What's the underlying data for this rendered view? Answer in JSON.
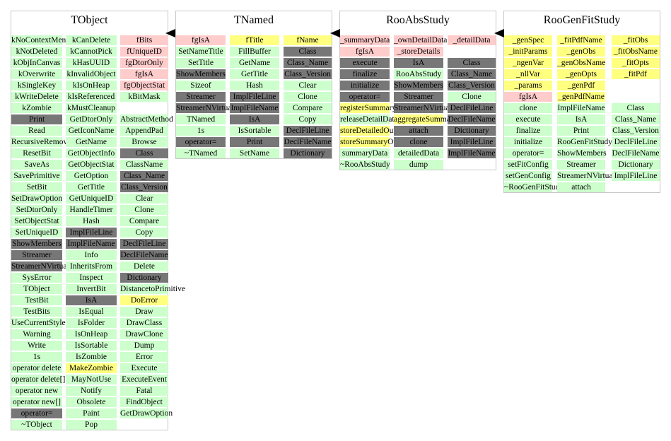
{
  "colors": {
    "green": "#ccffcc",
    "red": "#ffcccc",
    "yellow": "#ffff80",
    "gray": "#777777",
    "border": "#c8c8c8",
    "arrow": "#000000"
  },
  "classes": [
    {
      "name": "TObject",
      "columns": [
        [
          {
            "t": "kNoContextMenu",
            "c": "green"
          },
          {
            "t": "kNotDeleted",
            "c": "green"
          },
          {
            "t": "kObjInCanvas",
            "c": "green"
          },
          {
            "t": "kOverwrite",
            "c": "green"
          },
          {
            "t": "kSingleKey",
            "c": "green"
          },
          {
            "t": "kWriteDelete",
            "c": "green"
          },
          {
            "t": "kZombie",
            "c": "green"
          },
          {
            "t": "Print",
            "c": "gray"
          },
          {
            "t": "Read",
            "c": "green"
          },
          {
            "t": "RecursiveRemove",
            "c": "green"
          },
          {
            "t": "ResetBit",
            "c": "green"
          },
          {
            "t": "SaveAs",
            "c": "green"
          },
          {
            "t": "SavePrimitive",
            "c": "green"
          },
          {
            "t": "SetBit",
            "c": "green"
          },
          {
            "t": "SetDrawOption",
            "c": "green"
          },
          {
            "t": "SetDtorOnly",
            "c": "green"
          },
          {
            "t": "SetObjectStat",
            "c": "green"
          },
          {
            "t": "SetUniqueID",
            "c": "green"
          },
          {
            "t": "ShowMembers",
            "c": "gray"
          },
          {
            "t": "Streamer",
            "c": "gray"
          },
          {
            "t": "StreamerNVirtual",
            "c": "gray"
          },
          {
            "t": "SysError",
            "c": "green"
          },
          {
            "t": "TObject",
            "c": "green"
          },
          {
            "t": "TestBit",
            "c": "green"
          },
          {
            "t": "TestBits",
            "c": "green"
          },
          {
            "t": "UseCurrentStyle",
            "c": "green"
          },
          {
            "t": "Warning",
            "c": "green"
          },
          {
            "t": "Write",
            "c": "green"
          },
          {
            "t": "1s",
            "c": "green"
          },
          {
            "t": "operator delete",
            "c": "green"
          },
          {
            "t": "operator delete[]",
            "c": "green"
          },
          {
            "t": "operator new",
            "c": "green"
          },
          {
            "t": "operator new[]",
            "c": "green"
          },
          {
            "t": "operator=",
            "c": "gray"
          },
          {
            "t": "~TObject",
            "c": "green"
          }
        ],
        [
          {
            "t": "kCanDelete",
            "c": "green"
          },
          {
            "t": "kCannotPick",
            "c": "green"
          },
          {
            "t": "kHasUUID",
            "c": "green"
          },
          {
            "t": "kInvalidObject",
            "c": "green"
          },
          {
            "t": "kIsOnHeap",
            "c": "green"
          },
          {
            "t": "kIsReferenced",
            "c": "green"
          },
          {
            "t": "kMustCleanup",
            "c": "green"
          },
          {
            "t": "GetDtorOnly",
            "c": "green"
          },
          {
            "t": "GetIconName",
            "c": "green"
          },
          {
            "t": "GetName",
            "c": "green"
          },
          {
            "t": "GetObjectInfo",
            "c": "green"
          },
          {
            "t": "GetObjectStat",
            "c": "green"
          },
          {
            "t": "GetOption",
            "c": "green"
          },
          {
            "t": "GetTitle",
            "c": "green"
          },
          {
            "t": "GetUniqueID",
            "c": "green"
          },
          {
            "t": "HandleTimer",
            "c": "green"
          },
          {
            "t": "Hash",
            "c": "green"
          },
          {
            "t": "ImplFileLine",
            "c": "gray"
          },
          {
            "t": "ImplFileName",
            "c": "gray"
          },
          {
            "t": "Info",
            "c": "green"
          },
          {
            "t": "InheritsFrom",
            "c": "green"
          },
          {
            "t": "Inspect",
            "c": "green"
          },
          {
            "t": "InvertBit",
            "c": "green"
          },
          {
            "t": "IsA",
            "c": "gray"
          },
          {
            "t": "IsEqual",
            "c": "green"
          },
          {
            "t": "IsFolder",
            "c": "green"
          },
          {
            "t": "IsOnHeap",
            "c": "green"
          },
          {
            "t": "IsSortable",
            "c": "green"
          },
          {
            "t": "IsZombie",
            "c": "green"
          },
          {
            "t": "MakeZombie",
            "c": "yellow"
          },
          {
            "t": "MayNotUse",
            "c": "green"
          },
          {
            "t": "Notify",
            "c": "green"
          },
          {
            "t": "Obsolete",
            "c": "green"
          },
          {
            "t": "Paint",
            "c": "green"
          },
          {
            "t": "Pop",
            "c": "green"
          }
        ],
        [
          {
            "t": "fBits",
            "c": "red"
          },
          {
            "t": "fUniqueID",
            "c": "red"
          },
          {
            "t": "fgDtorOnly",
            "c": "red"
          },
          {
            "t": "fgIsA",
            "c": "red"
          },
          {
            "t": "fgObjectStat",
            "c": "red"
          },
          {
            "t": "kBitMask",
            "c": "green"
          },
          {
            "t": "",
            "c": "none"
          },
          {
            "t": "AbstractMethod",
            "c": "green"
          },
          {
            "t": "AppendPad",
            "c": "green"
          },
          {
            "t": "Browse",
            "c": "green"
          },
          {
            "t": "Class",
            "c": "gray"
          },
          {
            "t": "ClassName",
            "c": "green"
          },
          {
            "t": "Class_Name",
            "c": "gray"
          },
          {
            "t": "Class_Version",
            "c": "gray"
          },
          {
            "t": "Clear",
            "c": "green"
          },
          {
            "t": "Clone",
            "c": "green"
          },
          {
            "t": "Compare",
            "c": "green"
          },
          {
            "t": "Copy",
            "c": "green"
          },
          {
            "t": "DeclFileLine",
            "c": "gray"
          },
          {
            "t": "DeclFileName",
            "c": "gray"
          },
          {
            "t": "Delete",
            "c": "green"
          },
          {
            "t": "Dictionary",
            "c": "gray"
          },
          {
            "t": "DistancetoPrimitive",
            "c": "green"
          },
          {
            "t": "DoError",
            "c": "yellow"
          },
          {
            "t": "Draw",
            "c": "green"
          },
          {
            "t": "DrawClass",
            "c": "green"
          },
          {
            "t": "DrawClone",
            "c": "green"
          },
          {
            "t": "Dump",
            "c": "green"
          },
          {
            "t": "Error",
            "c": "green"
          },
          {
            "t": "Execute",
            "c": "green"
          },
          {
            "t": "ExecuteEvent",
            "c": "green"
          },
          {
            "t": "Fatal",
            "c": "green"
          },
          {
            "t": "FindObject",
            "c": "green"
          },
          {
            "t": "GetDrawOption",
            "c": "green"
          }
        ]
      ]
    },
    {
      "name": "TNamed",
      "columns": [
        [
          {
            "t": "fgIsA",
            "c": "red"
          },
          {
            "t": "SetNameTitle",
            "c": "green"
          },
          {
            "t": "SetTitle",
            "c": "green"
          },
          {
            "t": "ShowMembers",
            "c": "gray"
          },
          {
            "t": "Sizeof",
            "c": "green"
          },
          {
            "t": "Streamer",
            "c": "gray"
          },
          {
            "t": "StreamerNVirtual",
            "c": "gray"
          },
          {
            "t": "TNamed",
            "c": "green"
          },
          {
            "t": "1s",
            "c": "green"
          },
          {
            "t": "operator=",
            "c": "gray"
          },
          {
            "t": "~TNamed",
            "c": "green"
          }
        ],
        [
          {
            "t": "fTitle",
            "c": "yellow"
          },
          {
            "t": "FillBuffer",
            "c": "green"
          },
          {
            "t": "GetName",
            "c": "green"
          },
          {
            "t": "GetTitle",
            "c": "green"
          },
          {
            "t": "Hash",
            "c": "green"
          },
          {
            "t": "ImplFileLine",
            "c": "gray"
          },
          {
            "t": "ImplFileName",
            "c": "gray"
          },
          {
            "t": "IsA",
            "c": "gray"
          },
          {
            "t": "IsSortable",
            "c": "green"
          },
          {
            "t": "Print",
            "c": "gray"
          },
          {
            "t": "SetName",
            "c": "green"
          }
        ],
        [
          {
            "t": "fName",
            "c": "yellow"
          },
          {
            "t": "Class",
            "c": "gray"
          },
          {
            "t": "Class_Name",
            "c": "gray"
          },
          {
            "t": "Class_Version",
            "c": "gray"
          },
          {
            "t": "Clear",
            "c": "green"
          },
          {
            "t": "Clone",
            "c": "green"
          },
          {
            "t": "Compare",
            "c": "green"
          },
          {
            "t": "Copy",
            "c": "green"
          },
          {
            "t": "DeclFileLine",
            "c": "gray"
          },
          {
            "t": "DeclFileName",
            "c": "gray"
          },
          {
            "t": "Dictionary",
            "c": "gray"
          }
        ]
      ]
    },
    {
      "name": "RooAbsStudy",
      "columns": [
        [
          {
            "t": "_summaryData",
            "c": "red"
          },
          {
            "t": "fgIsA",
            "c": "red"
          },
          {
            "t": "execute",
            "c": "gray"
          },
          {
            "t": "finalize",
            "c": "gray"
          },
          {
            "t": "initialize",
            "c": "gray"
          },
          {
            "t": "operator=",
            "c": "gray"
          },
          {
            "t": "registerSummaryOutput",
            "c": "yellow"
          },
          {
            "t": "releaseDetailData",
            "c": "green"
          },
          {
            "t": "storeDetailedOutput",
            "c": "yellow"
          },
          {
            "t": "storeSummaryOutput",
            "c": "yellow"
          },
          {
            "t": "summaryData",
            "c": "green"
          },
          {
            "t": "~RooAbsStudy",
            "c": "green"
          }
        ],
        [
          {
            "t": "_ownDetailData",
            "c": "red"
          },
          {
            "t": "_storeDetails",
            "c": "red"
          },
          {
            "t": "IsA",
            "c": "gray"
          },
          {
            "t": "RooAbsStudy",
            "c": "green"
          },
          {
            "t": "ShowMembers",
            "c": "gray"
          },
          {
            "t": "Streamer",
            "c": "gray"
          },
          {
            "t": "StreamerNVirtual",
            "c": "gray"
          },
          {
            "t": "aggregateSummaryOutput",
            "c": "yellow"
          },
          {
            "t": "attach",
            "c": "gray"
          },
          {
            "t": "clone",
            "c": "gray"
          },
          {
            "t": "detailedData",
            "c": "green"
          },
          {
            "t": "dump",
            "c": "green"
          }
        ],
        [
          {
            "t": "_detailData",
            "c": "red"
          },
          {
            "t": "",
            "c": "none"
          },
          {
            "t": "Class",
            "c": "gray"
          },
          {
            "t": "Class_Name",
            "c": "gray"
          },
          {
            "t": "Class_Version",
            "c": "gray"
          },
          {
            "t": "Clone",
            "c": "green"
          },
          {
            "t": "DeclFileLine",
            "c": "gray"
          },
          {
            "t": "DeclFileName",
            "c": "gray"
          },
          {
            "t": "Dictionary",
            "c": "gray"
          },
          {
            "t": "ImplFileLine",
            "c": "gray"
          },
          {
            "t": "ImplFileName",
            "c": "gray"
          }
        ]
      ]
    },
    {
      "name": "RooGenFitStudy",
      "columns": [
        [
          {
            "t": "_genSpec",
            "c": "yellow"
          },
          {
            "t": "_initParams",
            "c": "yellow"
          },
          {
            "t": "_ngenVar",
            "c": "yellow"
          },
          {
            "t": "_nllVar",
            "c": "yellow"
          },
          {
            "t": "_params",
            "c": "yellow"
          },
          {
            "t": "fgIsA",
            "c": "red"
          },
          {
            "t": "clone",
            "c": "green"
          },
          {
            "t": "execute",
            "c": "green"
          },
          {
            "t": "finalize",
            "c": "green"
          },
          {
            "t": "initialize",
            "c": "green"
          },
          {
            "t": "operator=",
            "c": "green"
          },
          {
            "t": "setFitConfig",
            "c": "green"
          },
          {
            "t": "setGenConfig",
            "c": "green"
          },
          {
            "t": "~RooGenFitStudy",
            "c": "green"
          }
        ],
        [
          {
            "t": "_fitPdfName",
            "c": "yellow"
          },
          {
            "t": "_genObs",
            "c": "yellow"
          },
          {
            "t": "_genObsName",
            "c": "yellow"
          },
          {
            "t": "_genOpts",
            "c": "yellow"
          },
          {
            "t": "_genPdf",
            "c": "yellow"
          },
          {
            "t": "_genPdfName",
            "c": "yellow"
          },
          {
            "t": "ImplFileName",
            "c": "green"
          },
          {
            "t": "IsA",
            "c": "green"
          },
          {
            "t": "Print",
            "c": "green"
          },
          {
            "t": "RooGenFitStudy",
            "c": "green"
          },
          {
            "t": "ShowMembers",
            "c": "green"
          },
          {
            "t": "Streamer",
            "c": "green"
          },
          {
            "t": "StreamerNVirtual",
            "c": "green"
          },
          {
            "t": "attach",
            "c": "green"
          }
        ],
        [
          {
            "t": "_fitObs",
            "c": "yellow"
          },
          {
            "t": "_fitObsName",
            "c": "yellow"
          },
          {
            "t": "_fitOpts",
            "c": "yellow"
          },
          {
            "t": "_fitPdf",
            "c": "yellow"
          },
          {
            "t": "",
            "c": "none"
          },
          {
            "t": "",
            "c": "none"
          },
          {
            "t": "Class",
            "c": "green"
          },
          {
            "t": "Class_Name",
            "c": "green"
          },
          {
            "t": "Class_Version",
            "c": "green"
          },
          {
            "t": "DeclFileLine",
            "c": "green"
          },
          {
            "t": "DeclFileName",
            "c": "green"
          },
          {
            "t": "Dictionary",
            "c": "green"
          },
          {
            "t": "ImplFileLine",
            "c": "green"
          }
        ]
      ]
    }
  ]
}
